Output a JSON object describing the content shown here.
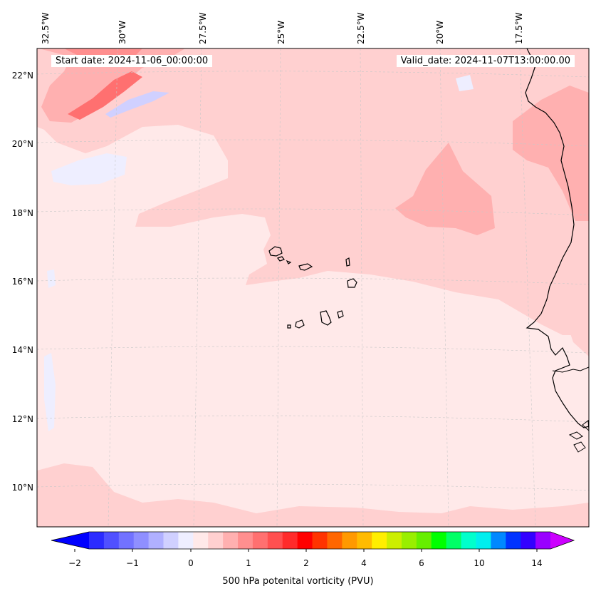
{
  "map": {
    "start_label": "Start date: 2024-11-06_00:00:00",
    "valid_label": "Valid_date: 2024-11-07T13:00:00.00",
    "lon_labels": [
      "32.5°W",
      "30°W",
      "27.5°W",
      "25°W",
      "22.5°W",
      "20°W",
      "17.5°W"
    ],
    "lat_labels": [
      "22°N",
      "20°N",
      "18°N",
      "16°N",
      "14°N",
      "12°N",
      "10°N"
    ],
    "extent": {
      "lon_min": -33,
      "lon_max": -15.5,
      "lat_min": 9,
      "lat_max": 22.8
    }
  },
  "colorbar": {
    "title": "500 hPa potenital vorticity (PVU)",
    "ticks": [
      "−2",
      "−1",
      "0",
      "1",
      "2",
      "4",
      "6",
      "10",
      "14"
    ],
    "colors": [
      "#0000ff",
      "#2b2bff",
      "#5050ff",
      "#7272ff",
      "#8f8fff",
      "#b0b0ff",
      "#d0d0ff",
      "#eeeeff",
      "#ffe9e9",
      "#ffd0d0",
      "#ffb0b0",
      "#ff8f8f",
      "#ff7070",
      "#ff5050",
      "#ff2b2b",
      "#ff0000",
      "#ff3300",
      "#ff6600",
      "#ff9900",
      "#ffbb00",
      "#ffee00",
      "#ccee00",
      "#99ee00",
      "#66ee00",
      "#00ff00",
      "#00ff66",
      "#00ffcc",
      "#00eeee",
      "#0088ff",
      "#0033ff",
      "#3300ff",
      "#9900ff",
      "#cc00ff"
    ]
  }
}
